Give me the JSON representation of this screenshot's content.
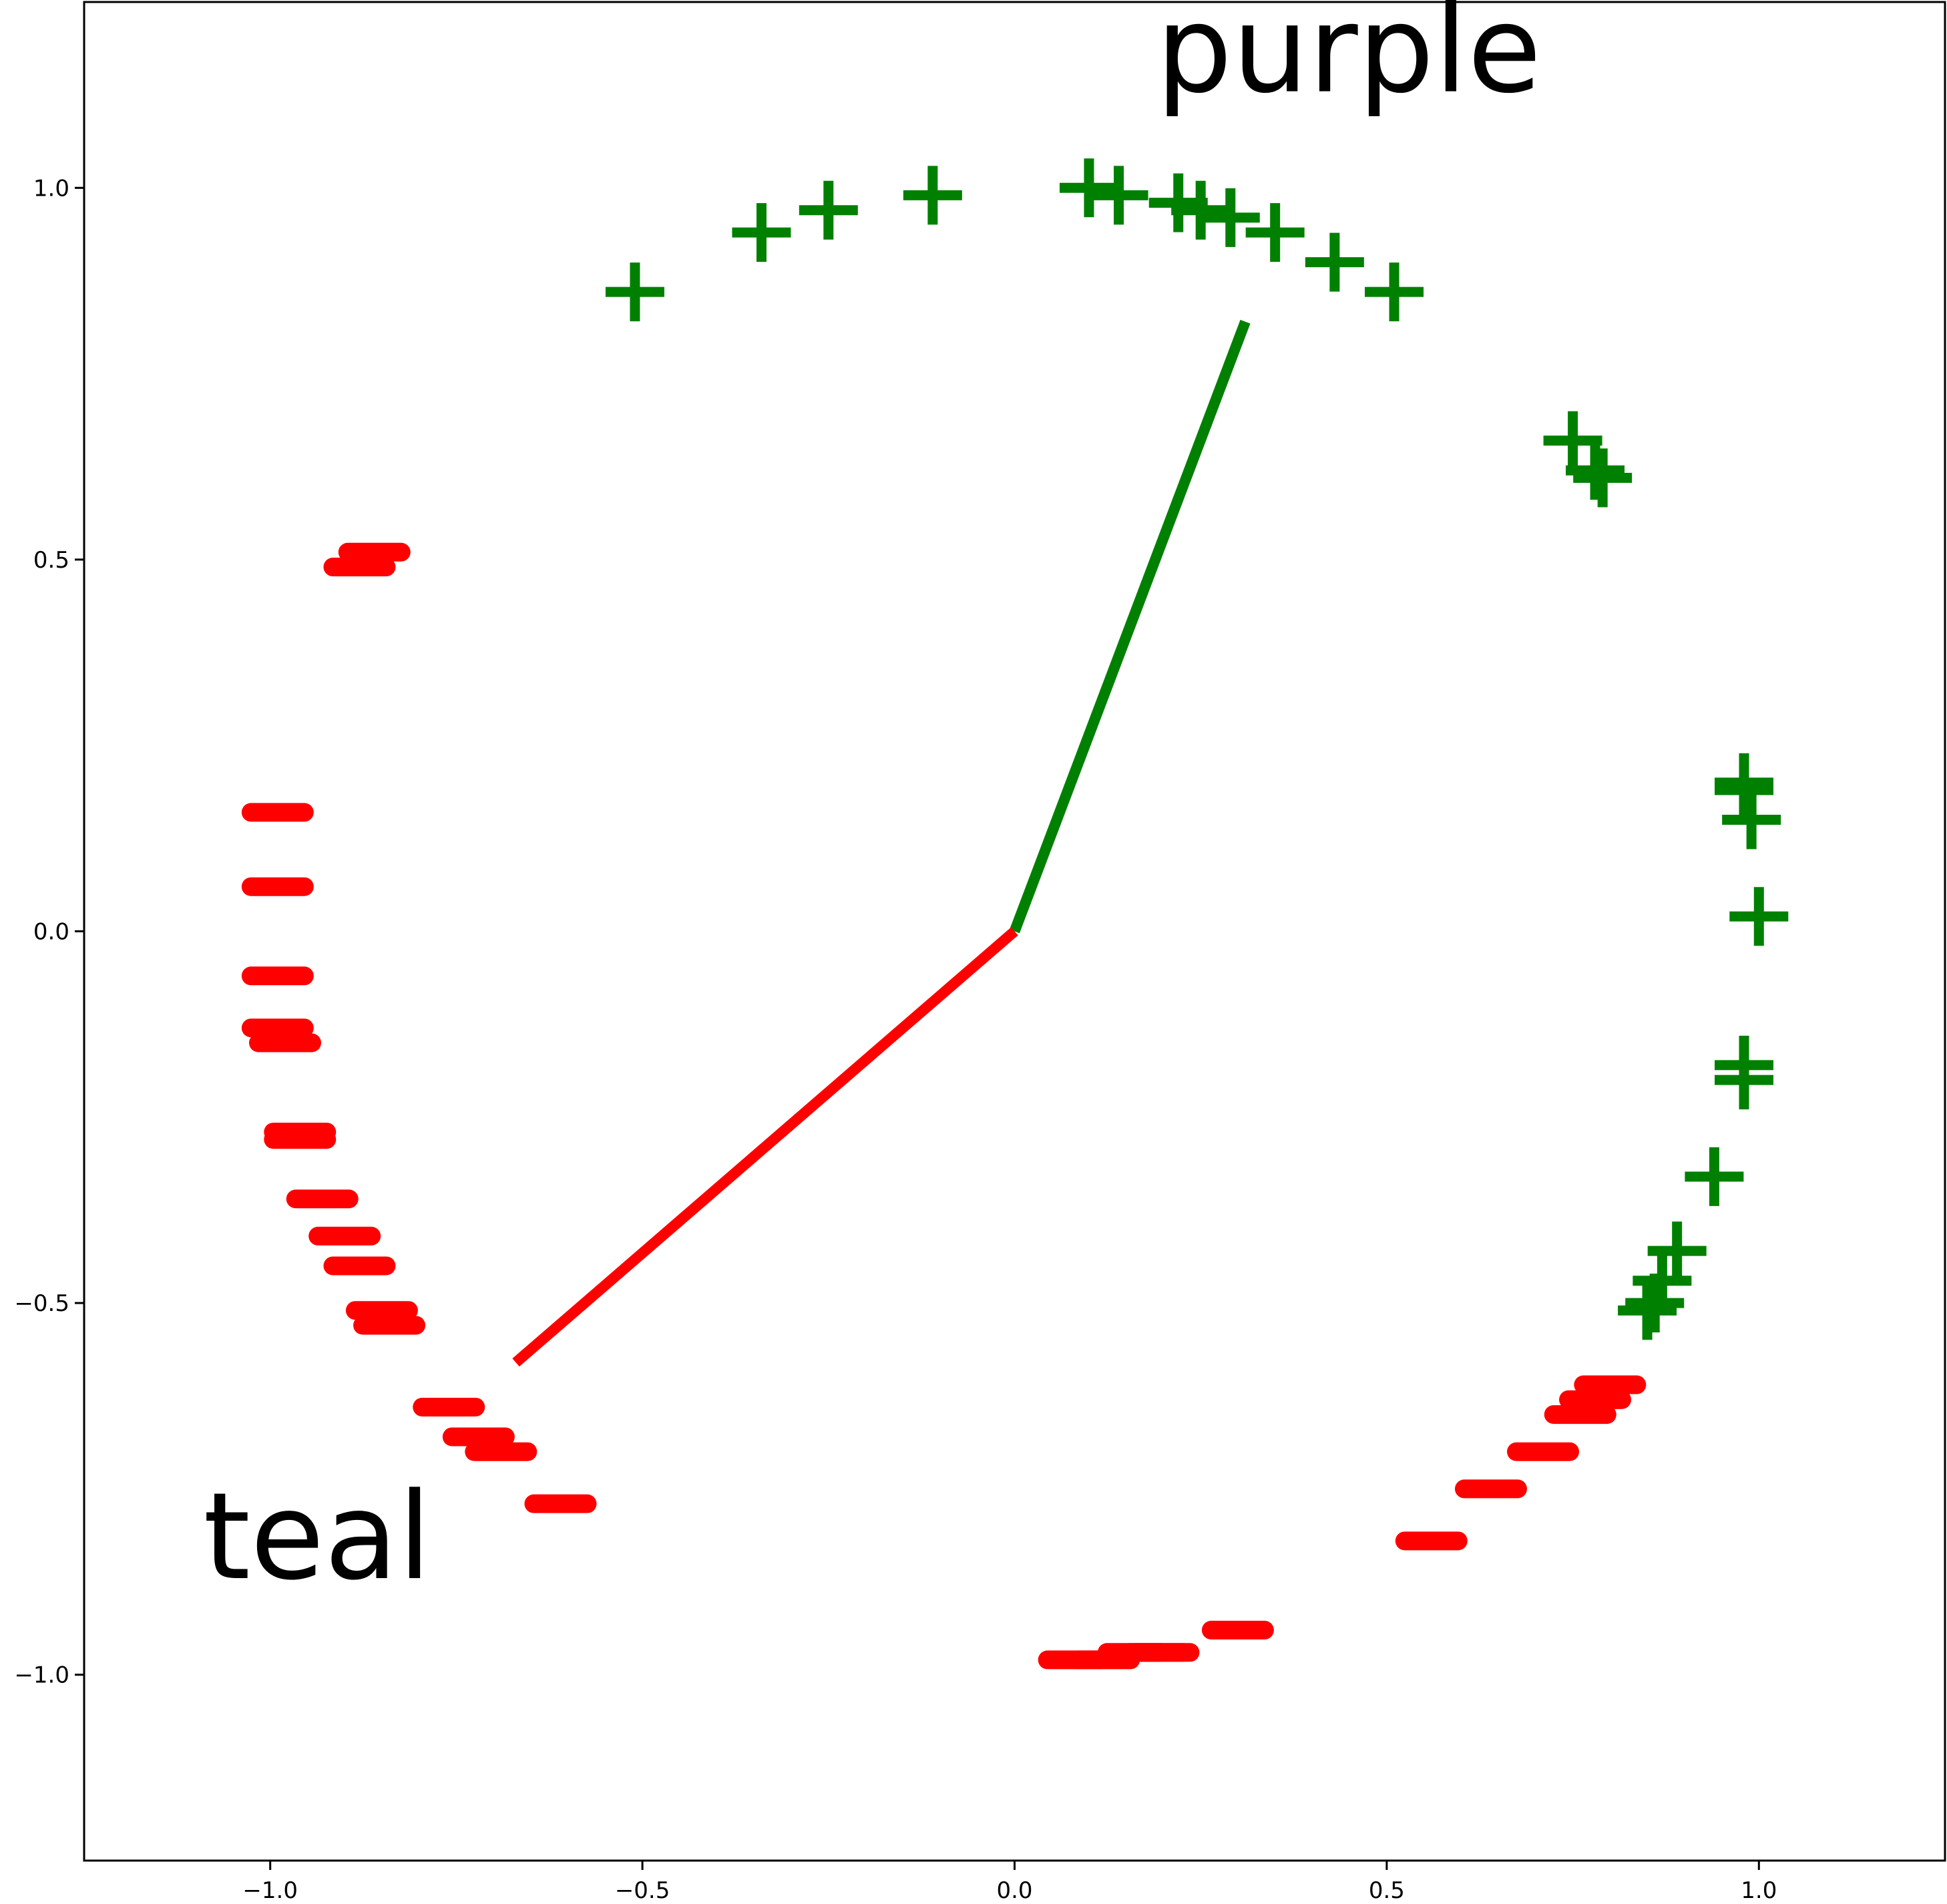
{
  "chart_data": {
    "type": "scatter",
    "title": "",
    "xlabel": "",
    "ylabel": "",
    "xlim": [
      -1.25,
      1.25
    ],
    "ylim": [
      -1.25,
      1.25
    ],
    "xticks": [
      -1.0,
      -0.5,
      0.0,
      0.5,
      1.0
    ],
    "xtick_labels": [
      "−1.0",
      "−0.5",
      "0.0",
      "0.5",
      "1.0"
    ],
    "yticks": [
      -1.0,
      -0.5,
      0.0,
      0.5,
      1.0
    ],
    "ytick_labels": [
      "−1.0",
      "−0.5",
      "0.0",
      "0.5",
      "1.0"
    ],
    "grid": false,
    "legend": "none",
    "series": [
      {
        "marker": "plus",
        "color": "#008000",
        "points": [
          [
            -0.51,
            0.86
          ],
          [
            -0.34,
            0.94
          ],
          [
            -0.25,
            0.97
          ],
          [
            -0.11,
            0.99
          ],
          [
            0.1,
            1.0
          ],
          [
            0.14,
            0.99
          ],
          [
            0.22,
            0.98
          ],
          [
            0.25,
            0.97
          ],
          [
            0.29,
            0.96
          ],
          [
            0.35,
            0.94
          ],
          [
            0.43,
            0.9
          ],
          [
            0.51,
            0.86
          ],
          [
            0.75,
            0.66
          ],
          [
            0.78,
            0.62
          ],
          [
            0.79,
            0.61
          ],
          [
            0.98,
            0.2
          ],
          [
            0.98,
            0.19
          ],
          [
            0.99,
            0.15
          ],
          [
            1.0,
            0.02
          ],
          [
            0.98,
            -0.18
          ],
          [
            0.98,
            -0.2
          ],
          [
            0.94,
            -0.33
          ],
          [
            0.89,
            -0.43
          ],
          [
            0.87,
            -0.47
          ],
          [
            0.86,
            -0.5
          ],
          [
            0.85,
            -0.51
          ]
        ]
      },
      {
        "marker": "hline",
        "color": "#ff0000",
        "points": [
          [
            -0.86,
            0.51
          ],
          [
            -0.88,
            0.49
          ],
          [
            -0.99,
            0.16
          ],
          [
            -0.99,
            0.06
          ],
          [
            -0.99,
            -0.06
          ],
          [
            -0.99,
            -0.13
          ],
          [
            -0.98,
            -0.15
          ],
          [
            -0.96,
            -0.27
          ],
          [
            -0.96,
            -0.28
          ],
          [
            -0.93,
            -0.36
          ],
          [
            -0.9,
            -0.41
          ],
          [
            -0.88,
            -0.45
          ],
          [
            -0.85,
            -0.51
          ],
          [
            -0.84,
            -0.53
          ],
          [
            -0.76,
            -0.64
          ],
          [
            -0.72,
            -0.68
          ],
          [
            -0.69,
            -0.7
          ],
          [
            -0.61,
            -0.77
          ],
          [
            0.08,
            -0.98
          ],
          [
            0.12,
            -0.98
          ],
          [
            0.16,
            -0.97
          ],
          [
            0.19,
            -0.97
          ],
          [
            0.2,
            -0.97
          ],
          [
            0.3,
            -0.94
          ],
          [
            0.56,
            -0.82
          ],
          [
            0.64,
            -0.75
          ],
          [
            0.71,
            -0.7
          ],
          [
            0.76,
            -0.65
          ],
          [
            0.78,
            -0.63
          ],
          [
            0.8,
            -0.61
          ]
        ]
      },
      {
        "marker": "line",
        "color": "#008000",
        "points": [
          [
            0.0,
            0.0
          ],
          [
            0.31,
            0.82
          ]
        ]
      },
      {
        "marker": "line",
        "color": "#ff0000",
        "points": [
          [
            0.0,
            0.0
          ],
          [
            -0.67,
            -0.58
          ]
        ]
      }
    ],
    "annotations": [
      {
        "text": "purple",
        "x": 0.19,
        "y": 1.13
      },
      {
        "text": "teal",
        "x": -1.09,
        "y": -0.87
      }
    ]
  }
}
